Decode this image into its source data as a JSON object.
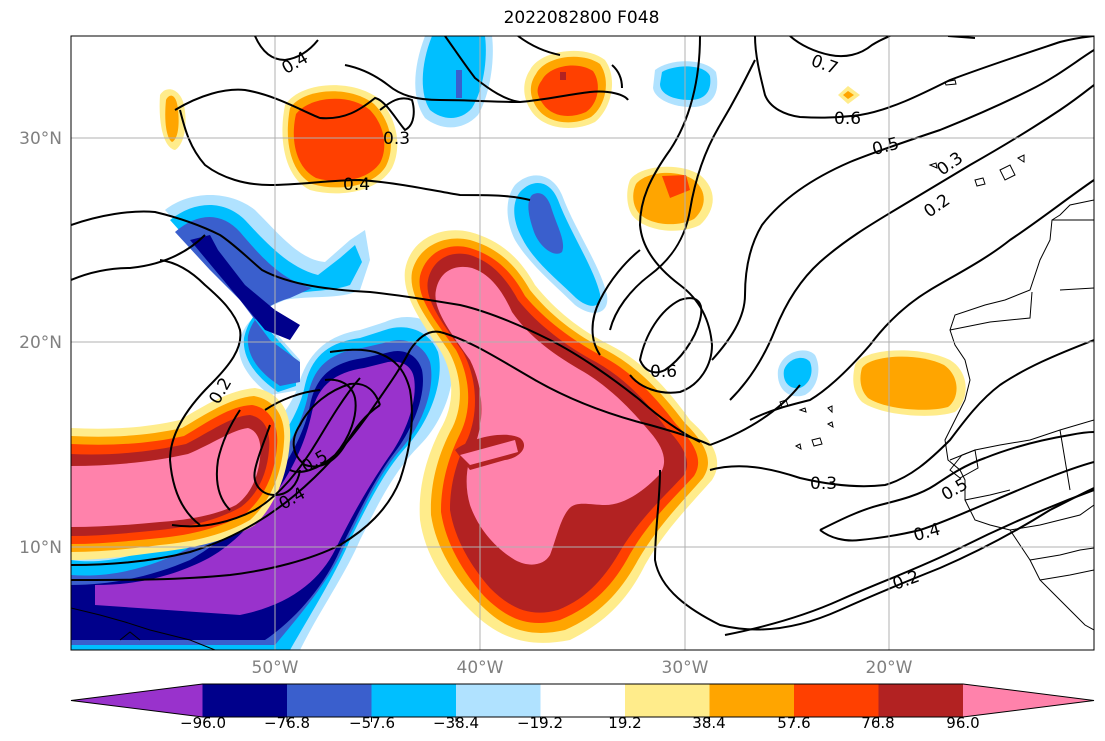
{
  "title": "2022082800 F048",
  "map": {
    "lat_labels": [
      "30°N",
      "20°N",
      "10°N"
    ],
    "lon_labels": [
      "50°W",
      "40°W",
      "30°W",
      "20°W"
    ],
    "contour_labels": [
      "0.4",
      "0.3",
      "0.4",
      "0.7",
      "0.6",
      "0.5",
      "0.3",
      "0.2",
      "0.2",
      "0.6",
      "0.5",
      "0.4",
      "0.3",
      "0.4",
      "0.2",
      "0.5"
    ]
  },
  "colorbar": {
    "tick_labels": [
      "−96.0",
      "−76.8",
      "−57.6",
      "−38.4",
      "−19.2",
      "19.2",
      "38.4",
      "57.6",
      "76.8",
      "96.0"
    ],
    "colors": [
      "#9932cc",
      "#00008b",
      "#3a5fcd",
      "#00bfff",
      "#b0e2ff",
      "#ffffff",
      "#ffec8b",
      "#ffa500",
      "#ff4000",
      "#b22222",
      "#ff82ab"
    ]
  },
  "colors": {
    "purple": "#9932cc",
    "navy": "#00008b",
    "royal": "#3a5fcd",
    "sky": "#00bfff",
    "pale": "#b0e2ff",
    "yellow": "#ffec8b",
    "orange": "#ffa500",
    "red": "#ff4000",
    "darkred": "#b22222",
    "pink": "#ff82ab"
  }
}
